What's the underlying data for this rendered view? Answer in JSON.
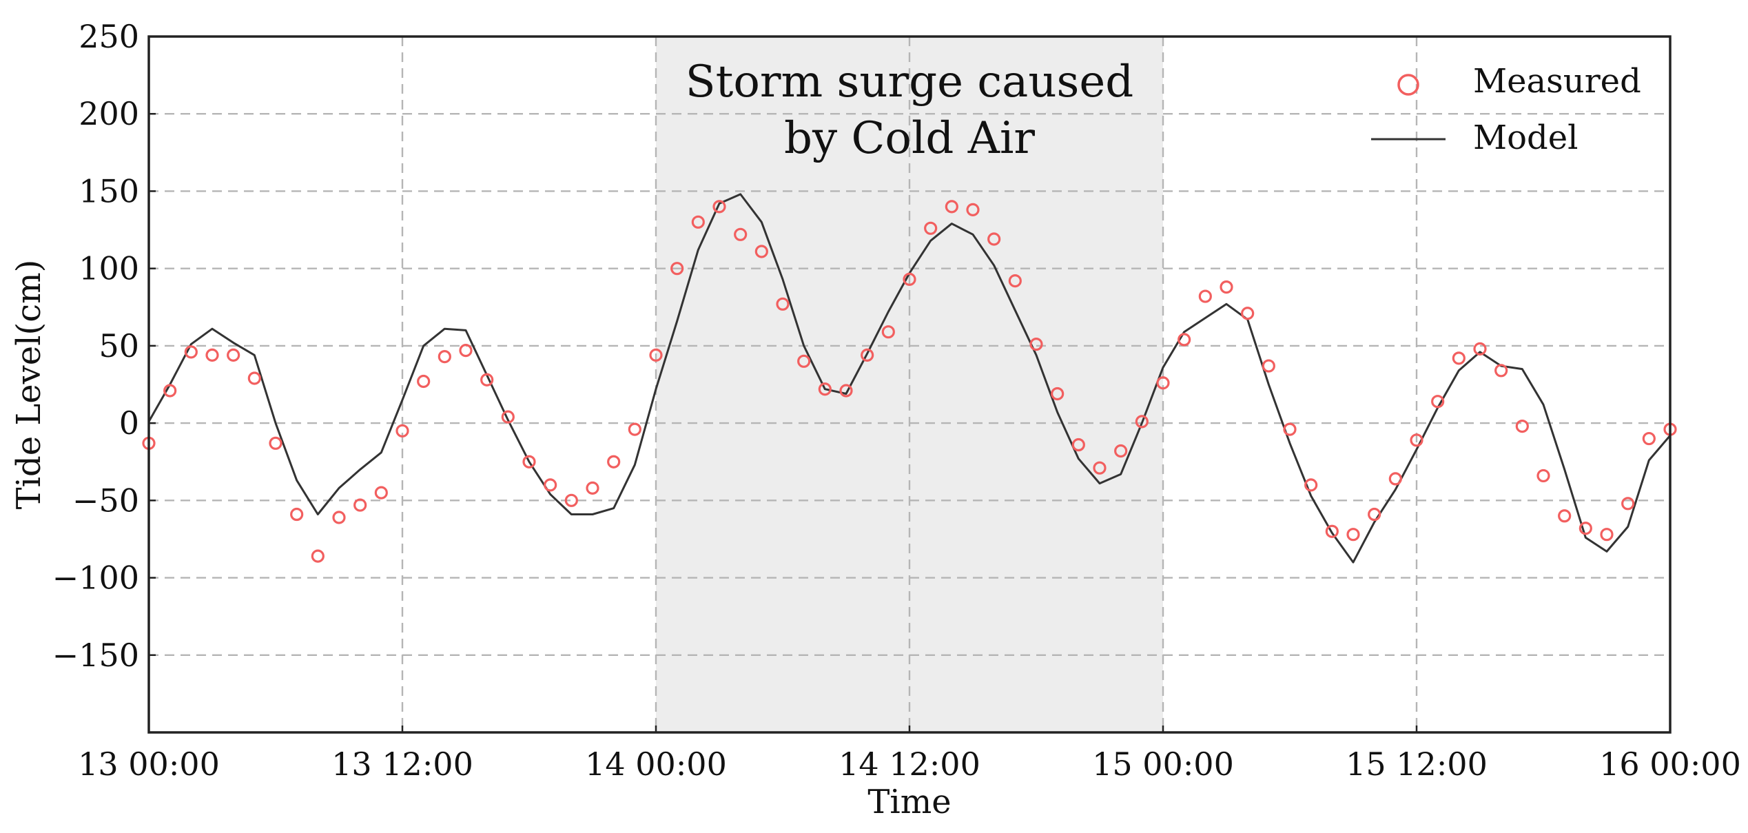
{
  "chart_data": {
    "type": "line",
    "xlabel": "Time",
    "ylabel": "Tide Level(cm)",
    "x_range_hours": [
      0,
      72
    ],
    "ylim": [
      -200,
      250
    ],
    "y_ticks": [
      -150,
      -100,
      -50,
      0,
      50,
      100,
      150,
      200,
      250
    ],
    "x_ticks": [
      {
        "hour": 0,
        "label": "13 00:00"
      },
      {
        "hour": 12,
        "label": "13 12:00"
      },
      {
        "hour": 24,
        "label": "14 00:00"
      },
      {
        "hour": 36,
        "label": "14 12:00"
      },
      {
        "hour": 48,
        "label": "15 00:00"
      },
      {
        "hour": 60,
        "label": "15 12:00"
      },
      {
        "hour": 72,
        "label": "16 00:00"
      }
    ],
    "grid": true,
    "legend_position": "top-right",
    "shaded_region": {
      "x_start_hour": 24,
      "x_end_hour": 48,
      "label_lines": [
        "Storm surge caused",
        "by Cold Air"
      ],
      "color": "#ededed"
    },
    "series": [
      {
        "name": "Measured",
        "style": "markers",
        "marker": "open-circle",
        "color": "#f25f5f",
        "points": [
          [
            0,
            -13
          ],
          [
            1,
            21
          ],
          [
            2,
            46
          ],
          [
            3,
            44
          ],
          [
            4,
            44
          ],
          [
            5,
            29
          ],
          [
            6,
            -13
          ],
          [
            7,
            -59
          ],
          [
            8,
            -86
          ],
          [
            9,
            -61
          ],
          [
            10,
            -53
          ],
          [
            11,
            -45
          ],
          [
            12,
            -5
          ],
          [
            13,
            27
          ],
          [
            14,
            43
          ],
          [
            15,
            47
          ],
          [
            16,
            28
          ],
          [
            17,
            4
          ],
          [
            18,
            -25
          ],
          [
            19,
            -40
          ],
          [
            20,
            -50
          ],
          [
            21,
            -42
          ],
          [
            22,
            -25
          ],
          [
            23,
            -4
          ],
          [
            24,
            44
          ],
          [
            25,
            100
          ],
          [
            26,
            130
          ],
          [
            27,
            140
          ],
          [
            28,
            122
          ],
          [
            29,
            111
          ],
          [
            30,
            77
          ],
          [
            31,
            40
          ],
          [
            32,
            22
          ],
          [
            33,
            21
          ],
          [
            34,
            44
          ],
          [
            35,
            59
          ],
          [
            36,
            93
          ],
          [
            37,
            126
          ],
          [
            38,
            140
          ],
          [
            39,
            138
          ],
          [
            40,
            119
          ],
          [
            41,
            92
          ],
          [
            42,
            51
          ],
          [
            43,
            19
          ],
          [
            44,
            -14
          ],
          [
            45,
            -29
          ],
          [
            46,
            -18
          ],
          [
            47,
            1
          ],
          [
            48,
            26
          ],
          [
            49,
            54
          ],
          [
            50,
            82
          ],
          [
            51,
            88
          ],
          [
            52,
            71
          ],
          [
            53,
            37
          ],
          [
            54,
            -4
          ],
          [
            55,
            -40
          ],
          [
            56,
            -70
          ],
          [
            57,
            -72
          ],
          [
            58,
            -59
          ],
          [
            59,
            -36
          ],
          [
            60,
            -11
          ],
          [
            61,
            14
          ],
          [
            62,
            42
          ],
          [
            63,
            48
          ],
          [
            64,
            34
          ],
          [
            65,
            -2
          ],
          [
            66,
            -34
          ],
          [
            67,
            -60
          ],
          [
            68,
            -68
          ],
          [
            69,
            -72
          ],
          [
            70,
            -52
          ],
          [
            71,
            -10
          ],
          [
            72,
            -4
          ]
        ]
      },
      {
        "name": "Model",
        "style": "line",
        "color": "#333333",
        "points": [
          [
            0,
            1
          ],
          [
            1,
            25
          ],
          [
            2,
            51
          ],
          [
            3,
            61
          ],
          [
            4,
            52
          ],
          [
            5,
            44
          ],
          [
            6,
            0
          ],
          [
            7,
            -37
          ],
          [
            8,
            -59
          ],
          [
            9,
            -42
          ],
          [
            10,
            -30
          ],
          [
            11,
            -19
          ],
          [
            12,
            15
          ],
          [
            13,
            50
          ],
          [
            14,
            61
          ],
          [
            15,
            60
          ],
          [
            16,
            31
          ],
          [
            17,
            2
          ],
          [
            18,
            -25
          ],
          [
            19,
            -46
          ],
          [
            20,
            -59
          ],
          [
            21,
            -59
          ],
          [
            22,
            -55
          ],
          [
            23,
            -27
          ],
          [
            24,
            22
          ],
          [
            25,
            66
          ],
          [
            26,
            112
          ],
          [
            27,
            142
          ],
          [
            28,
            148
          ],
          [
            29,
            130
          ],
          [
            30,
            93
          ],
          [
            31,
            50
          ],
          [
            32,
            22
          ],
          [
            33,
            19
          ],
          [
            34,
            45
          ],
          [
            35,
            72
          ],
          [
            36,
            97
          ],
          [
            37,
            118
          ],
          [
            38,
            129
          ],
          [
            39,
            122
          ],
          [
            40,
            102
          ],
          [
            41,
            73
          ],
          [
            42,
            44
          ],
          [
            43,
            7
          ],
          [
            44,
            -23
          ],
          [
            45,
            -39
          ],
          [
            46,
            -33
          ],
          [
            47,
            0
          ],
          [
            48,
            36
          ],
          [
            49,
            59
          ],
          [
            50,
            68
          ],
          [
            51,
            77
          ],
          [
            52,
            67
          ],
          [
            53,
            25
          ],
          [
            54,
            -13
          ],
          [
            55,
            -47
          ],
          [
            56,
            -71
          ],
          [
            57,
            -90
          ],
          [
            58,
            -64
          ],
          [
            59,
            -43
          ],
          [
            60,
            -17
          ],
          [
            61,
            10
          ],
          [
            62,
            34
          ],
          [
            63,
            46
          ],
          [
            64,
            37
          ],
          [
            65,
            35
          ],
          [
            66,
            12
          ],
          [
            67,
            -30
          ],
          [
            68,
            -74
          ],
          [
            69,
            -83
          ],
          [
            70,
            -67
          ],
          [
            71,
            -24
          ],
          [
            72,
            -8
          ]
        ]
      }
    ]
  }
}
